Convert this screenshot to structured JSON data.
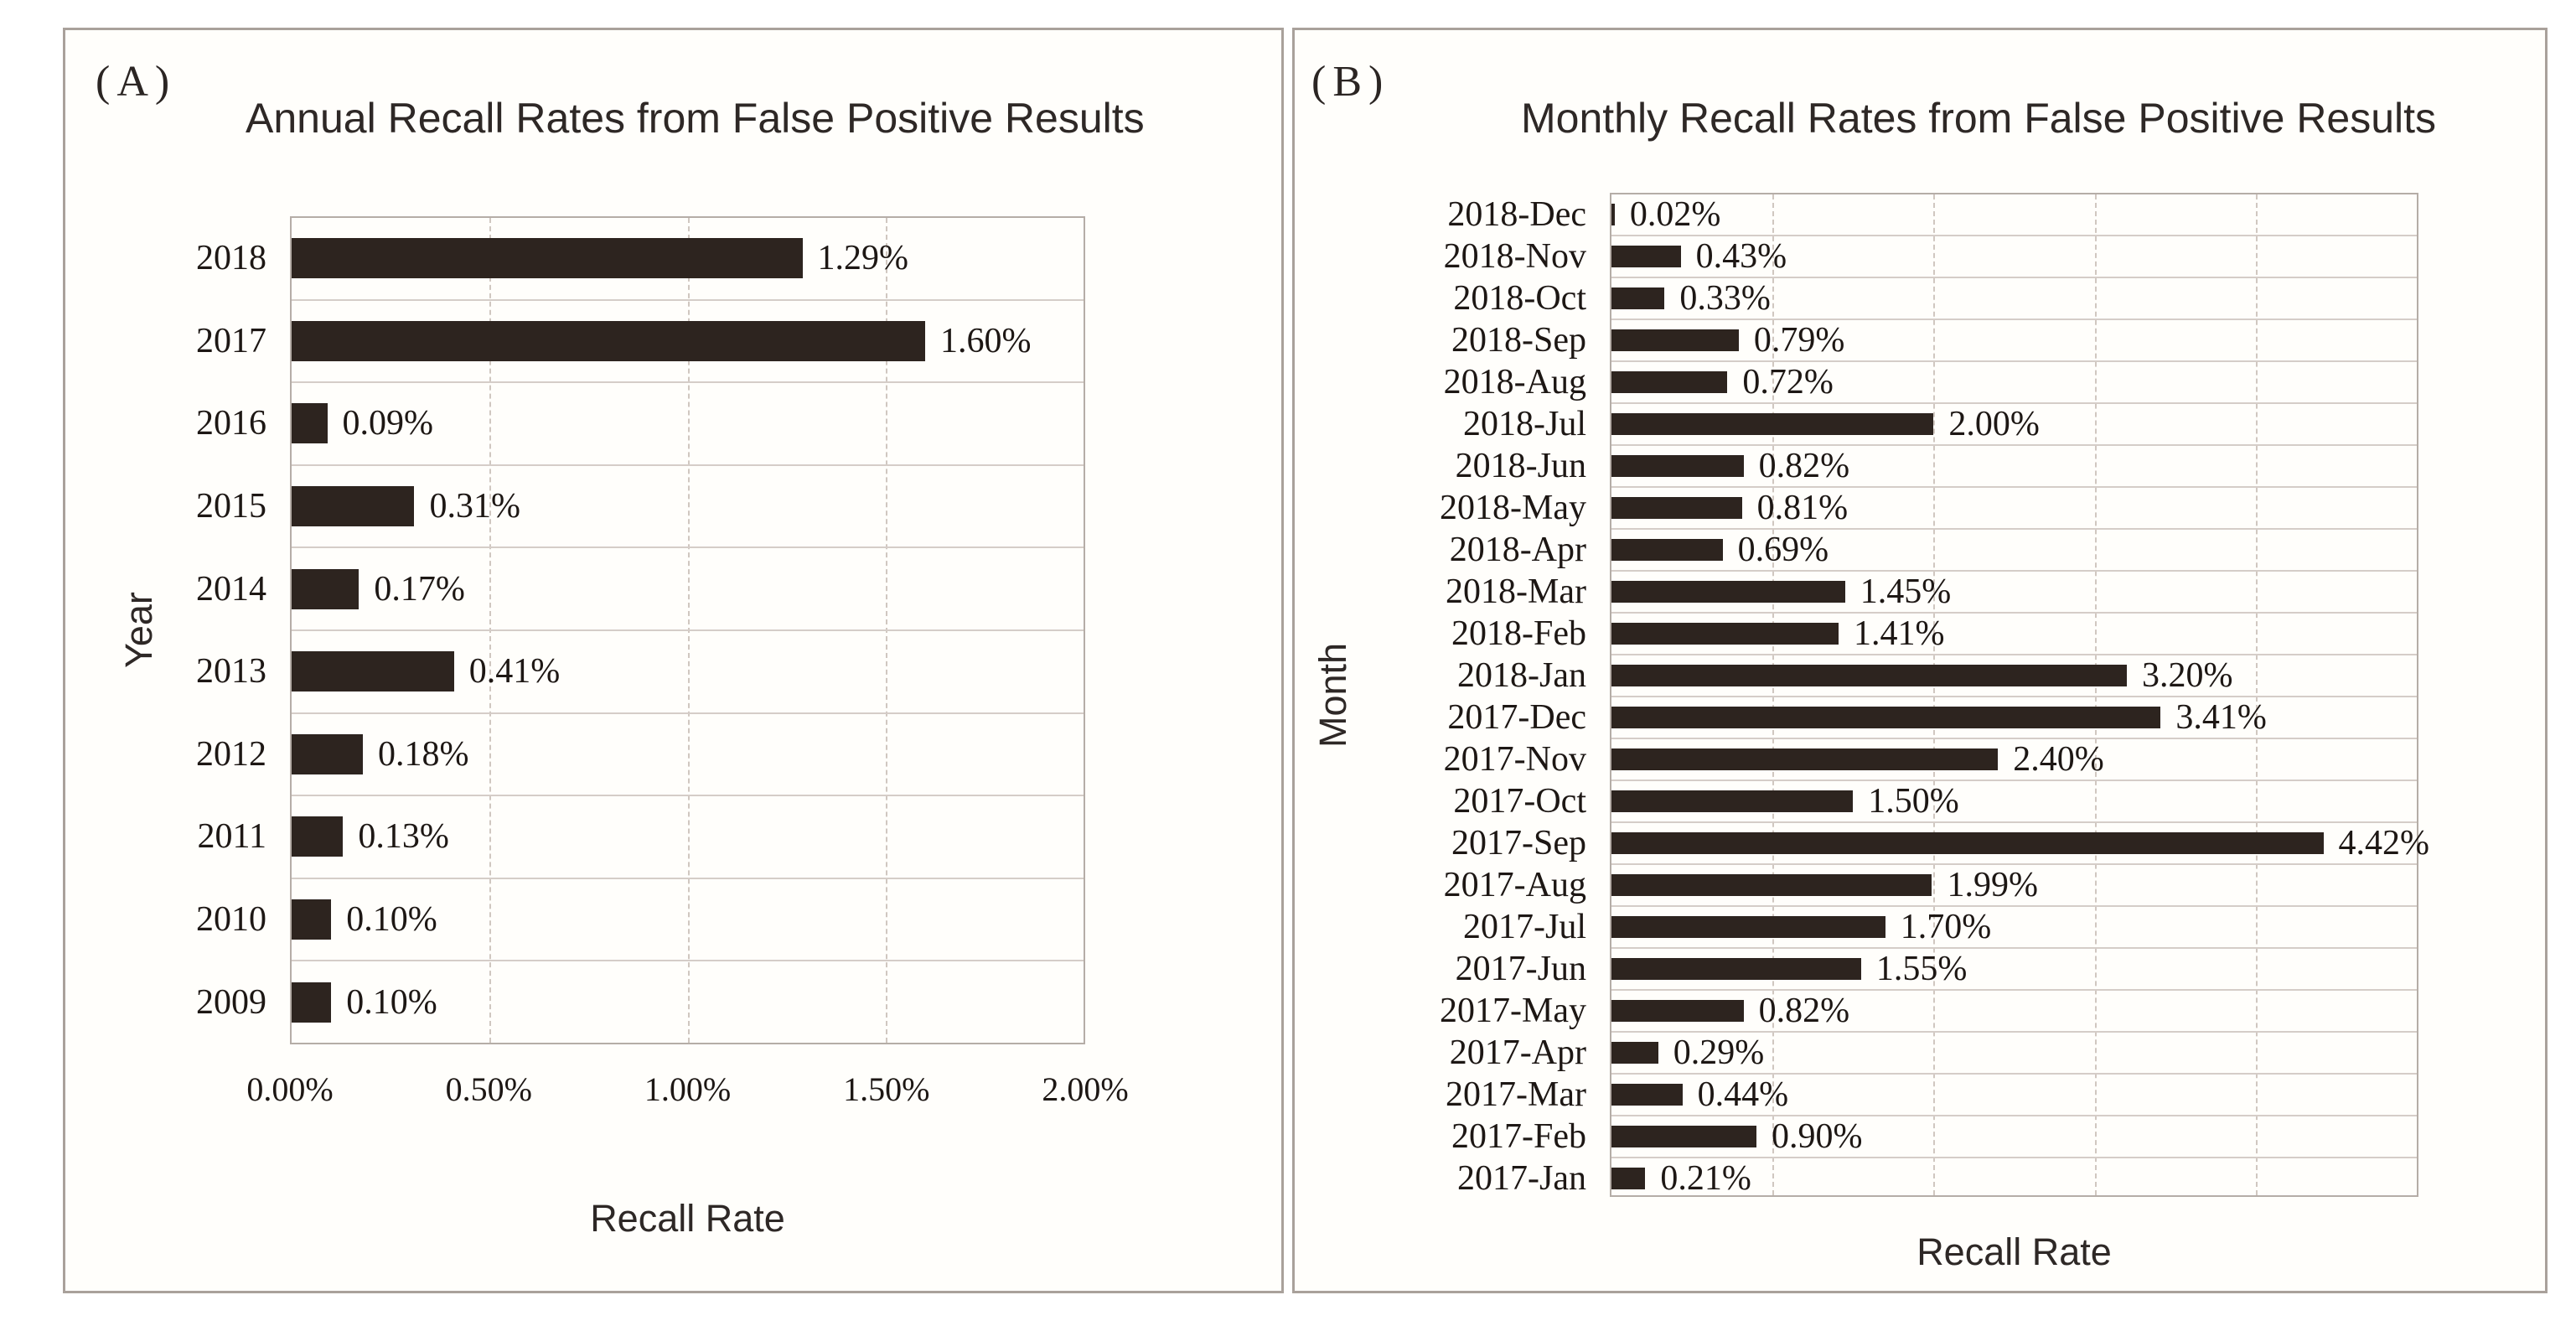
{
  "figure": {
    "panel_a_letter": "(A)",
    "panel_b_letter": "(B)"
  },
  "colors": {
    "bar": "#2d241f",
    "grid_dashed": "#d0c7c0",
    "row_separator": "#d5cdc8",
    "plot_border": "#b5ada7",
    "panel_border": "#a9a19b"
  },
  "chart_data": [
    {
      "type": "bar",
      "orientation": "horizontal",
      "panel_letter": "(A)",
      "title": "Annual Recall Rates from False Positive Results",
      "xlabel": "Recall Rate",
      "ylabel": "Year",
      "categories": [
        "2018",
        "2017",
        "2016",
        "2015",
        "2014",
        "2013",
        "2012",
        "2011",
        "2010",
        "2009"
      ],
      "values": [
        1.29,
        1.6,
        0.09,
        0.31,
        0.17,
        0.41,
        0.18,
        0.13,
        0.1,
        0.1
      ],
      "value_labels": [
        "1.29%",
        "1.60%",
        "0.09%",
        "0.31%",
        "0.17%",
        "0.41%",
        "0.18%",
        "0.13%",
        "0.10%",
        "0.10%"
      ],
      "xlim": [
        0,
        2
      ],
      "gridline_values": [
        0.5,
        1.0,
        1.5
      ],
      "x_ticks": [
        {
          "value": 0.0,
          "label": "0.00%"
        },
        {
          "value": 0.5,
          "label": "0.50%"
        },
        {
          "value": 1.0,
          "label": "1.00%"
        },
        {
          "value": 1.5,
          "label": "1.50%"
        },
        {
          "value": 2.0,
          "label": "2.00%"
        }
      ],
      "grid": true,
      "legend": false
    },
    {
      "type": "bar",
      "orientation": "horizontal",
      "panel_letter": "(B)",
      "title": "Monthly Recall Rates from False Positive Results",
      "xlabel": "Recall Rate",
      "ylabel": "Month",
      "categories": [
        "2018-Dec",
        "2018-Nov",
        "2018-Oct",
        "2018-Sep",
        "2018-Aug",
        "2018-Jul",
        "2018-Jun",
        "2018-May",
        "2018-Apr",
        "2018-Mar",
        "2018-Feb",
        "2018-Jan",
        "2017-Dec",
        "2017-Nov",
        "2017-Oct",
        "2017-Sep",
        "2017-Aug",
        "2017-Jul",
        "2017-Jun",
        "2017-May",
        "2017-Apr",
        "2017-Mar",
        "2017-Feb",
        "2017-Jan"
      ],
      "values": [
        0.02,
        0.43,
        0.33,
        0.79,
        0.72,
        2.0,
        0.82,
        0.81,
        0.69,
        1.45,
        1.41,
        3.2,
        3.41,
        2.4,
        1.5,
        4.42,
        1.99,
        1.7,
        1.55,
        0.82,
        0.29,
        0.44,
        0.9,
        0.21
      ],
      "value_labels": [
        "0.02%",
        "0.43%",
        "0.33%",
        "0.79%",
        "0.72%",
        "2.00%",
        "0.82%",
        "0.81%",
        "0.69%",
        "1.45%",
        "1.41%",
        "3.20%",
        "3.41%",
        "2.40%",
        "1.50%",
        "4.42%",
        "1.99%",
        "1.70%",
        "1.55%",
        "0.82%",
        "0.29%",
        "0.44%",
        "0.90%",
        "0.21%"
      ],
      "xlim": [
        0,
        5
      ],
      "gridline_values": [
        1,
        2,
        3,
        4
      ],
      "x_ticks": [],
      "grid": true,
      "legend": false
    }
  ]
}
